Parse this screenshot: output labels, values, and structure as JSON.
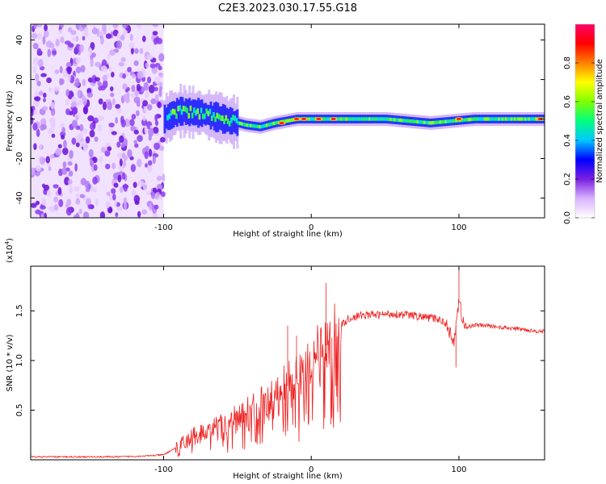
{
  "figure_title": "C2E3.2023.030.17.55.G18",
  "chart_data": [
    {
      "type": "heatmap",
      "xlabel": "Height of straight line (km)",
      "ylabel": "Frequency (Hz)",
      "xlim": [
        -190,
        158
      ],
      "ylim": [
        -50,
        48
      ],
      "x_ticks": [
        -100,
        0,
        100
      ],
      "x_tick_labels": [
        "-100",
        "0",
        "100"
      ],
      "y_ticks": [
        -40,
        -20,
        0,
        20,
        40
      ],
      "y_tick_labels": [
        "-40",
        "-20",
        "0",
        "20",
        "40"
      ],
      "colorbar": {
        "label": "Normalized spectral amplitude",
        "range": [
          0,
          1
        ],
        "ticks": [
          0.0,
          0.2,
          0.4,
          0.6,
          0.8
        ],
        "tick_labels": [
          "0.0",
          "0.2",
          "0.4",
          "0.6",
          "0.8"
        ],
        "colormap": [
          "#ffffff",
          "#d9b3ff",
          "#7a1fe0",
          "#0000ff",
          "#00c8ff",
          "#00ff80",
          "#80ff00",
          "#ffff00",
          "#ff8000",
          "#ff0000",
          "#ff0066"
        ]
      },
      "noise_region_x": [
        -190,
        -100
      ],
      "signal_center_track": [
        {
          "x": -100,
          "y": 0
        },
        {
          "x": -90,
          "y": 4
        },
        {
          "x": -75,
          "y": 3
        },
        {
          "x": -60,
          "y": 0
        },
        {
          "x": -45,
          "y": -3
        },
        {
          "x": -35,
          "y": -4
        },
        {
          "x": -25,
          "y": -2
        },
        {
          "x": -10,
          "y": 0
        },
        {
          "x": 0,
          "y": 0
        },
        {
          "x": 20,
          "y": 0
        },
        {
          "x": 50,
          "y": 0
        },
        {
          "x": 80,
          "y": -2
        },
        {
          "x": 95,
          "y": -1
        },
        {
          "x": 110,
          "y": 0
        },
        {
          "x": 158,
          "y": 0
        }
      ],
      "hot_spots": [
        {
          "x": -20,
          "y": -2
        },
        {
          "x": -10,
          "y": 0
        },
        {
          "x": -5,
          "y": 0
        },
        {
          "x": 5,
          "y": 0
        },
        {
          "x": 15,
          "y": 0
        },
        {
          "x": 100,
          "y": 0
        },
        {
          "x": 155,
          "y": 0
        }
      ]
    },
    {
      "type": "line",
      "xlabel": "Height of straight line (km)",
      "ylabel": "SNR (10 * v/v)",
      "y_multiplier": "(x10",
      "y_multiplier_exp": "4",
      "y_multiplier_close": ")",
      "xlim": [
        -190,
        158
      ],
      "ylim": [
        0,
        1.95
      ],
      "x_ticks": [
        -100,
        0,
        100
      ],
      "x_tick_labels": [
        "-100",
        "0",
        "100"
      ],
      "y_ticks": [
        0.5,
        1.0,
        1.5
      ],
      "y_tick_labels": [
        "0.5",
        "1.0",
        "1.5"
      ],
      "color": "#ee2222",
      "series": [
        {
          "x": [
            -190,
            -170,
            -150,
            -130,
            -110,
            -100,
            -92,
            -85,
            -78,
            -70,
            -62,
            -55,
            -48,
            -40,
            -32,
            -25,
            -18,
            -10,
            -5,
            0,
            5,
            10,
            15,
            20,
            25,
            35,
            45,
            55,
            65,
            75,
            85,
            92,
            96,
            100,
            104,
            110,
            120,
            130,
            140,
            150,
            158
          ],
          "y": [
            0.03,
            0.03,
            0.03,
            0.03,
            0.04,
            0.05,
            0.12,
            0.2,
            0.25,
            0.28,
            0.32,
            0.36,
            0.42,
            0.48,
            0.55,
            0.62,
            0.72,
            0.82,
            0.92,
            1.0,
            1.08,
            1.15,
            1.25,
            1.35,
            1.42,
            1.46,
            1.46,
            1.47,
            1.46,
            1.44,
            1.42,
            1.38,
            1.15,
            1.6,
            1.32,
            1.36,
            1.35,
            1.33,
            1.32,
            1.3,
            1.29
          ]
        }
      ],
      "spikes": [
        {
          "x": 100,
          "y": 1.92
        },
        {
          "x": 10,
          "y": 1.78
        },
        {
          "x": -16,
          "y": 1.35
        },
        {
          "x": -10,
          "y": 1.25
        },
        {
          "x": 98,
          "y": 0.93
        },
        {
          "x": 14,
          "y": 0.42
        }
      ]
    }
  ]
}
